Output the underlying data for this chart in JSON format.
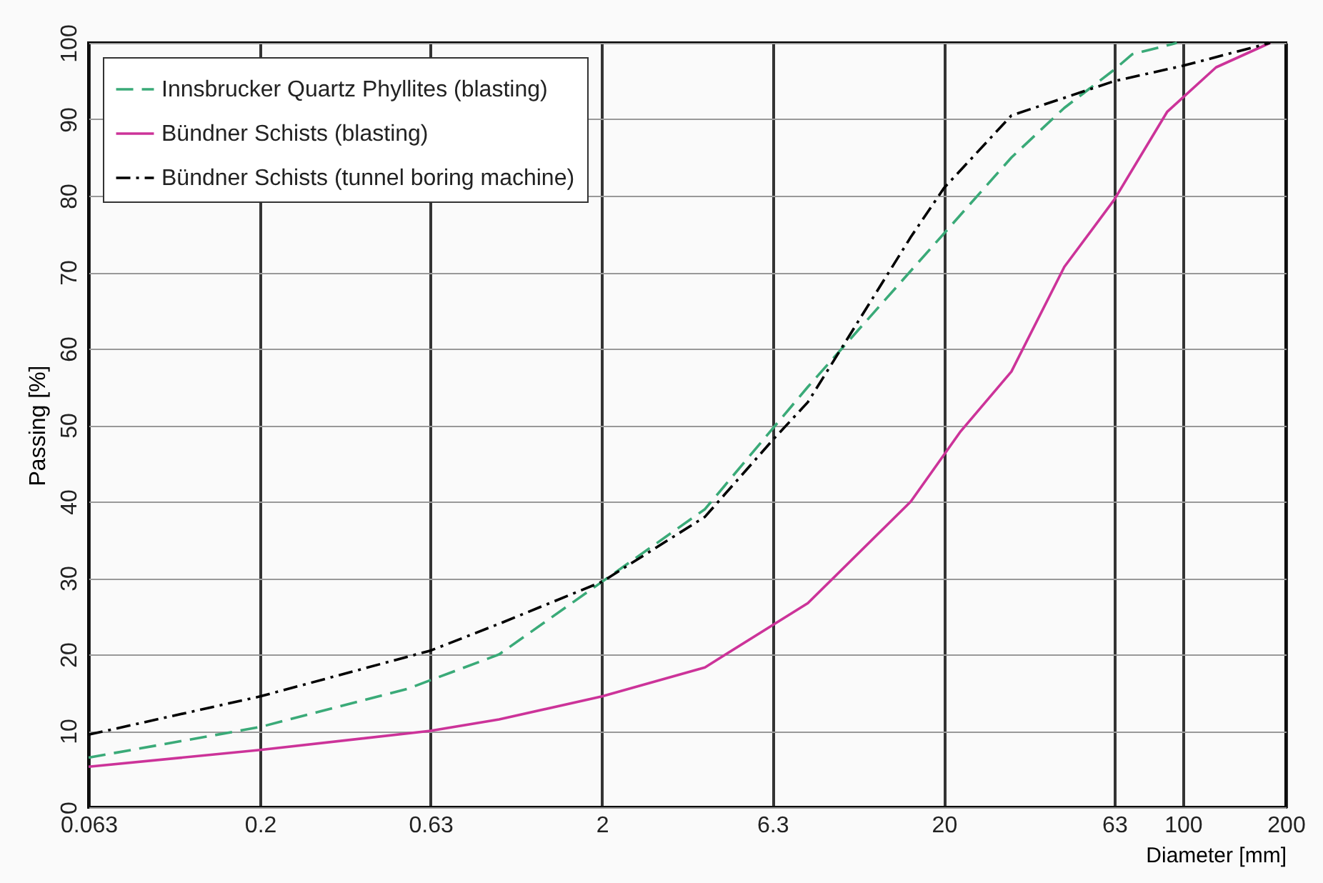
{
  "chart_data": {
    "type": "line",
    "xlabel": "Diameter [mm]",
    "ylabel": "Passing  [%]",
    "log": "x",
    "xlim": [
      0.063,
      200
    ],
    "xticks": [
      0.063,
      0.2,
      0.63,
      2,
      6.3,
      20,
      63,
      100,
      200
    ],
    "ylim": [
      0,
      100
    ],
    "yticks": [
      0,
      10,
      20,
      30,
      40,
      50,
      60,
      70,
      80,
      90,
      100
    ],
    "grid": true,
    "legend": "top left",
    "series": [
      {
        "name": "Innsbrucker Quartz Phyllites (blasting)",
        "color": "#3aaa78",
        "line_style": "dashed",
        "x": [
          0.063,
          0.2,
          0.54,
          1,
          2,
          4,
          6.3,
          8,
          31.5,
          45,
          63,
          71,
          96
        ],
        "values": [
          6.5,
          10.5,
          15.5,
          20,
          29.5,
          39,
          49.5,
          55,
          85,
          91.5,
          96.5,
          98.5,
          100
        ]
      },
      {
        "name": "Bündner Schists (blasting)",
        "color": "#cc3399",
        "line_style": "solid",
        "x": [
          0.063,
          0.2,
          0.63,
          1,
          2,
          4,
          8,
          16,
          22.4,
          31.5,
          45,
          63,
          90,
          125,
          180
        ],
        "values": [
          5.3,
          7.5,
          10,
          11.5,
          14.5,
          18.3,
          26.7,
          40,
          49.2,
          57,
          70.7,
          79.5,
          91,
          96.8,
          100
        ]
      },
      {
        "name": "Bündner Schists (tunnel boring machine)",
        "color": "#000000",
        "line_style": "dashdot",
        "x": [
          0.063,
          0.2,
          0.63,
          1,
          2,
          4,
          6.3,
          8,
          16,
          20,
          31.5,
          63,
          100,
          180
        ],
        "values": [
          9.5,
          14.5,
          20.5,
          24,
          29.5,
          38,
          48,
          53,
          74.6,
          81,
          90.5,
          95,
          97,
          100
        ]
      }
    ]
  }
}
